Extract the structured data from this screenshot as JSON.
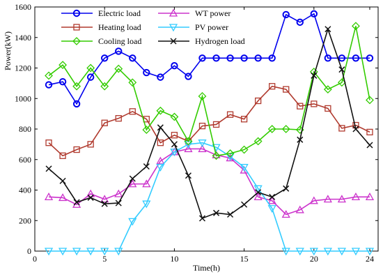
{
  "chart_data": {
    "type": "line",
    "xlabel": "Time(h)",
    "ylabel": "Power(kW)",
    "xlim": [
      0,
      24.6
    ],
    "ylim": [
      0,
      1600
    ],
    "xticks": [
      0,
      5,
      10,
      15,
      20,
      24
    ],
    "yticks": [
      0,
      200,
      400,
      600,
      800,
      1000,
      1200,
      1400,
      1600
    ],
    "grid": false,
    "legend_position": "top-left",
    "x": [
      1,
      2,
      3,
      4,
      5,
      6,
      7,
      8,
      9,
      10,
      11,
      12,
      13,
      14,
      15,
      16,
      17,
      18,
      19,
      20,
      21,
      22,
      23,
      24
    ],
    "series": [
      {
        "name": "Electric load",
        "color": "#0000ee",
        "marker": "circle",
        "values": [
          1090,
          1110,
          965,
          1140,
          1265,
          1310,
          1265,
          1170,
          1140,
          1215,
          1145,
          1265,
          1265,
          1265,
          1265,
          1265,
          1265,
          1550,
          1500,
          1555,
          1265,
          1265,
          1265,
          1265
        ]
      },
      {
        "name": "WT power",
        "color": "#cc33cc",
        "marker": "triangle-up",
        "values": [
          355,
          350,
          305,
          375,
          340,
          375,
          440,
          440,
          590,
          650,
          670,
          670,
          630,
          610,
          530,
          355,
          330,
          240,
          270,
          330,
          340,
          340,
          355,
          355
        ]
      },
      {
        "name": "Heating load",
        "color": "#b03a2e",
        "marker": "square",
        "values": [
          710,
          625,
          665,
          700,
          840,
          870,
          915,
          865,
          710,
          760,
          720,
          820,
          830,
          895,
          865,
          985,
          1080,
          1060,
          950,
          965,
          935,
          805,
          825,
          780
        ]
      },
      {
        "name": "PV power",
        "color": "#33ccff",
        "marker": "triangle-down",
        "values": [
          0,
          0,
          0,
          0,
          0,
          0,
          195,
          310,
          550,
          650,
          700,
          710,
          680,
          620,
          550,
          410,
          280,
          0,
          0,
          0,
          0,
          0,
          0,
          0
        ]
      },
      {
        "name": "Cooling load",
        "color": "#33cc00",
        "marker": "diamond",
        "values": [
          1150,
          1220,
          1080,
          1200,
          1080,
          1195,
          1105,
          795,
          920,
          880,
          720,
          1015,
          625,
          640,
          665,
          720,
          800,
          800,
          795,
          1175,
          1060,
          1105,
          1475,
          990
        ]
      },
      {
        "name": "Hydrogen load",
        "color": "#111111",
        "marker": "x",
        "values": [
          540,
          460,
          320,
          350,
          310,
          315,
          475,
          555,
          810,
          700,
          495,
          215,
          250,
          240,
          305,
          385,
          355,
          410,
          730,
          1150,
          1455,
          1190,
          800,
          695
        ]
      }
    ]
  }
}
